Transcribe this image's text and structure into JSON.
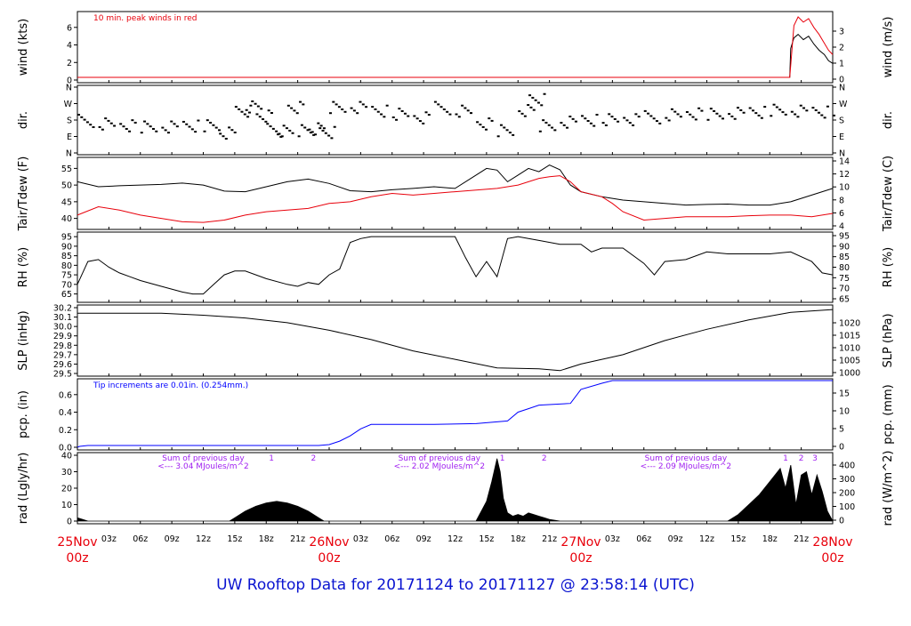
{
  "title": "UW Rooftop Data for 20171124  to  20171127 @ 23:58:14  (UTC)",
  "colors": {
    "black": "#000000",
    "red": "#e8000b",
    "blue": "#0000ff",
    "purple": "#a020f0",
    "title_blue": "#0a14d0"
  },
  "x_axis": {
    "minor_ticks": [
      "03z",
      "06z",
      "09z",
      "12z",
      "15z",
      "18z",
      "21z"
    ],
    "days": [
      {
        "top": "25Nov",
        "bottom": "00z"
      },
      {
        "top": "26Nov",
        "bottom": "00z"
      },
      {
        "top": "27Nov",
        "bottom": "00z"
      },
      {
        "top": "28Nov",
        "bottom": "00z"
      }
    ]
  },
  "chart_data": [
    {
      "type": "line",
      "panel": "wind",
      "ylabel_left": "wind (kts)",
      "ylabel_right": "wind (m/s)",
      "ylim": [
        0,
        7.5
      ],
      "left_ticks": [
        "0",
        "2",
        "4",
        "6"
      ],
      "right_ticks": [
        "0",
        "1",
        "2",
        "3"
      ],
      "annotation": "10 min. peak winds in red",
      "x_hours": [
        0,
        20,
        21.5,
        22,
        22.5,
        23,
        23.5,
        24
      ],
      "values_note": "calm until ~20z on 27Nov",
      "series": [
        {
          "color": "black",
          "x": [
            0,
            67.9,
            68.0,
            68.3,
            68.7,
            69.2,
            69.7,
            70.2,
            70.7,
            71.2,
            71.6,
            72
          ],
          "values": [
            0.3,
            0.3,
            3.6,
            4.8,
            5.2,
            4.6,
            5.0,
            4.1,
            3.4,
            2.9,
            2.2,
            1.9
          ]
        },
        {
          "color": "red",
          "x": [
            0,
            67.9,
            68.3,
            68.7,
            69.2,
            69.7,
            70.2,
            70.7,
            71.2,
            71.6,
            72
          ],
          "values": [
            0.3,
            0.3,
            6.2,
            7.2,
            6.6,
            7.0,
            6.0,
            5.2,
            4.2,
            3.4,
            2.9
          ]
        }
      ]
    },
    {
      "type": "scatter",
      "panel": "dir",
      "ylabel_left": "dir.",
      "ylabel_right": "dir.",
      "left_ticks": [
        "N",
        "E",
        "S",
        "W",
        "N"
      ],
      "right_ticks": [
        "N",
        "E",
        "S",
        "W",
        "N"
      ],
      "x": [
        0,
        2,
        4,
        6,
        8,
        10,
        12,
        13.5,
        15,
        16,
        17,
        18,
        19,
        20,
        21,
        22,
        23,
        24,
        26,
        28,
        30,
        32,
        34,
        36,
        38,
        40,
        42,
        43,
        44,
        46,
        48,
        50,
        52,
        54,
        56,
        58,
        60,
        62,
        64,
        66,
        68,
        70,
        72
      ],
      "values": [
        180,
        160,
        150,
        150,
        150,
        155,
        150,
        110,
        230,
        260,
        210,
        130,
        120,
        250,
        130,
        140,
        120,
        250,
        250,
        230,
        220,
        200,
        250,
        230,
        160,
        130,
        240,
        300,
        150,
        170,
        180,
        190,
        190,
        200,
        210,
        215,
        220,
        225,
        230,
        235,
        230,
        225,
        230
      ]
    },
    {
      "type": "line",
      "panel": "temp",
      "ylabel_left": "Tair/Tdew (F)",
      "ylabel_right": "Tair/Tdew (C)",
      "ylim": [
        37.5,
        57.5
      ],
      "left_ticks": [
        "40",
        "45",
        "50",
        "55"
      ],
      "right_ticks": [
        "4",
        "6",
        "8",
        "10",
        "12",
        "14"
      ],
      "series": [
        {
          "color": "black",
          "x": [
            0,
            2,
            4,
            6,
            8,
            10,
            12,
            14,
            16,
            18,
            20,
            22,
            24,
            26,
            28,
            30,
            32,
            34,
            36,
            38,
            39,
            40,
            41,
            42,
            43,
            44,
            45,
            46,
            47,
            48,
            50,
            52,
            54,
            56,
            58,
            60,
            62,
            64,
            66,
            68,
            70,
            72
          ],
          "values": [
            51,
            49.5,
            49.8,
            50,
            50.2,
            50.6,
            50,
            48.2,
            48,
            49.5,
            51,
            51.8,
            50.5,
            48.3,
            48,
            48.6,
            49,
            49.5,
            49,
            53,
            55,
            54.5,
            51,
            53,
            55,
            54,
            56,
            54.6,
            50,
            48,
            46.5,
            45.5,
            45,
            44.5,
            44,
            44.2,
            44.3,
            44,
            44,
            45,
            47,
            49
          ]
        },
        {
          "color": "red",
          "x": [
            0,
            2,
            4,
            6,
            8,
            10,
            12,
            14,
            16,
            18,
            20,
            22,
            24,
            26,
            28,
            30,
            32,
            34,
            36,
            38,
            40,
            42,
            44,
            45,
            46,
            47,
            48,
            50,
            51,
            52,
            54,
            56,
            58,
            60,
            62,
            64,
            66,
            68,
            70,
            72
          ],
          "values": [
            41,
            43.5,
            42.5,
            41,
            40,
            39,
            38.8,
            39.5,
            41,
            42,
            42.5,
            43,
            44.5,
            45,
            46.5,
            47.5,
            47,
            47.5,
            48,
            48.5,
            49,
            50,
            52,
            52.5,
            52.8,
            51,
            48,
            46.5,
            44.5,
            42,
            39.5,
            40,
            40.5,
            40.5,
            40.5,
            40.8,
            41,
            41,
            40.5,
            41.5
          ]
        }
      ]
    },
    {
      "type": "line",
      "panel": "rh",
      "ylabel_left": "RH (%)",
      "ylabel_right": "RH (%)",
      "ylim": [
        62,
        96
      ],
      "left_ticks": [
        "65",
        "70",
        "75",
        "80",
        "85",
        "90",
        "95"
      ],
      "right_ticks": [
        "65",
        "70",
        "75",
        "80",
        "85",
        "90",
        "95"
      ],
      "series": [
        {
          "color": "black",
          "x": [
            0,
            1,
            2,
            3,
            4,
            5,
            6,
            8,
            10,
            11,
            12,
            13,
            14,
            15,
            16,
            18,
            20,
            21,
            22,
            23,
            24,
            25,
            26,
            27,
            28,
            30,
            32,
            34,
            36,
            37,
            38,
            39,
            40,
            41,
            42,
            44,
            46,
            48,
            49,
            50,
            52,
            54,
            55,
            56,
            58,
            60,
            62,
            64,
            66,
            68,
            70,
            71,
            72
          ],
          "values": [
            70,
            82,
            83,
            79,
            76,
            74,
            72,
            69,
            66,
            65,
            65,
            70,
            75,
            77,
            77,
            73,
            70,
            69,
            71,
            70,
            75,
            78,
            92,
            94,
            95,
            95,
            95,
            95,
            95,
            84,
            74,
            82,
            74,
            94,
            95,
            93,
            91,
            91,
            87,
            89,
            89,
            81,
            75,
            82,
            83,
            87,
            86,
            86,
            86,
            87,
            82,
            76,
            75
          ]
        }
      ]
    },
    {
      "type": "line",
      "panel": "slp",
      "ylabel_left": "SLP (inHg)",
      "ylabel_right": "SLP (hPa)",
      "ylim": [
        29.5,
        30.2
      ],
      "left_ticks": [
        "29.5",
        "29.6",
        "29.7",
        "29.8",
        "29.9",
        "30.0",
        "30.1",
        "30.2"
      ],
      "right_ticks": [
        "1000",
        "1005",
        "1010",
        "1015",
        "1020"
      ],
      "series": [
        {
          "color": "black",
          "x": [
            0,
            4,
            8,
            12,
            16,
            20,
            24,
            28,
            32,
            36,
            40,
            44,
            46,
            48,
            52,
            56,
            60,
            64,
            68,
            72
          ],
          "values": [
            30.14,
            30.14,
            30.14,
            30.12,
            30.09,
            30.04,
            29.96,
            29.86,
            29.74,
            29.65,
            29.56,
            29.55,
            29.53,
            29.6,
            29.7,
            29.85,
            29.97,
            30.07,
            30.15,
            30.18
          ]
        }
      ]
    },
    {
      "type": "line",
      "panel": "pcp",
      "ylabel_left": "pcp. (in)",
      "ylabel_right": "pcp. (mm)",
      "ylim": [
        0,
        0.75
      ],
      "left_ticks": [
        "0.0",
        "0.2",
        "0.4",
        "0.6"
      ],
      "right_ticks": [
        "0",
        "5",
        "10",
        "15"
      ],
      "annotation": "Tip increments are 0.01in. (0.254mm.)",
      "series": [
        {
          "color": "blue",
          "x": [
            0,
            0.2,
            1,
            23,
            24,
            25,
            26,
            27,
            28,
            29,
            30,
            34,
            38,
            41,
            42,
            43,
            44,
            47,
            48,
            50,
            51,
            52,
            72
          ],
          "values": [
            0,
            0.01,
            0.02,
            0.02,
            0.03,
            0.07,
            0.13,
            0.21,
            0.26,
            0.26,
            0.26,
            0.26,
            0.27,
            0.3,
            0.4,
            0.44,
            0.48,
            0.5,
            0.66,
            0.73,
            0.76,
            0.76,
            0.76
          ]
        }
      ]
    },
    {
      "type": "area",
      "panel": "rad",
      "ylabel_left": "rad (Lgly/hr)",
      "ylabel_right": "rad (W/m^2)",
      "ylim": [
        0,
        40
      ],
      "left_ticks": [
        "0",
        "10",
        "20",
        "30",
        "40"
      ],
      "right_ticks": [
        "0",
        "100",
        "200",
        "300",
        "400"
      ],
      "annotations": [
        {
          "x": 12,
          "text": "Sum of previous day"
        },
        {
          "x": 12,
          "text": "<--- 3.04 MJoules/m^2"
        },
        {
          "x": 34.5,
          "text": "Sum of previous day"
        },
        {
          "x": 34.5,
          "text": "<--- 2.02 MJoules/m^2"
        },
        {
          "x": 58,
          "text": "Sum of previous day"
        },
        {
          "x": 58,
          "text": "<--- 2.09 MJoules/m^2"
        }
      ],
      "markers": [
        {
          "x": 18.5,
          "text": "1"
        },
        {
          "x": 22.5,
          "text": "2"
        },
        {
          "x": 40.5,
          "text": "1"
        },
        {
          "x": 44.5,
          "text": "2"
        },
        {
          "x": 67.5,
          "text": "1"
        },
        {
          "x": 69,
          "text": "2"
        },
        {
          "x": 70.3,
          "text": "3"
        }
      ],
      "series": [
        {
          "color": "black",
          "x": [
            0,
            0.5,
            1,
            14.5,
            15,
            16,
            17,
            18,
            19,
            20,
            21,
            22,
            23,
            23.5,
            24,
            38,
            38.5,
            39,
            39.5,
            40,
            40.3,
            40.6,
            41,
            41.5,
            42,
            42.5,
            43,
            43.5,
            44,
            44.5,
            45,
            46,
            47,
            48,
            62,
            63,
            64,
            65,
            66,
            67,
            67.5,
            68,
            68.5,
            69,
            69.5,
            70,
            70.5,
            71,
            71.5,
            72
          ],
          "values": [
            2,
            1,
            0,
            0,
            2,
            6,
            9,
            11,
            12,
            11,
            9,
            6,
            2,
            0,
            0,
            0,
            6,
            12,
            24,
            38,
            30,
            14,
            5,
            3,
            4,
            3,
            5,
            4,
            3,
            2,
            1,
            0,
            0,
            0,
            0,
            4,
            10,
            16,
            24,
            32,
            20,
            34,
            10,
            28,
            30,
            16,
            28,
            18,
            6,
            0
          ]
        }
      ]
    }
  ]
}
